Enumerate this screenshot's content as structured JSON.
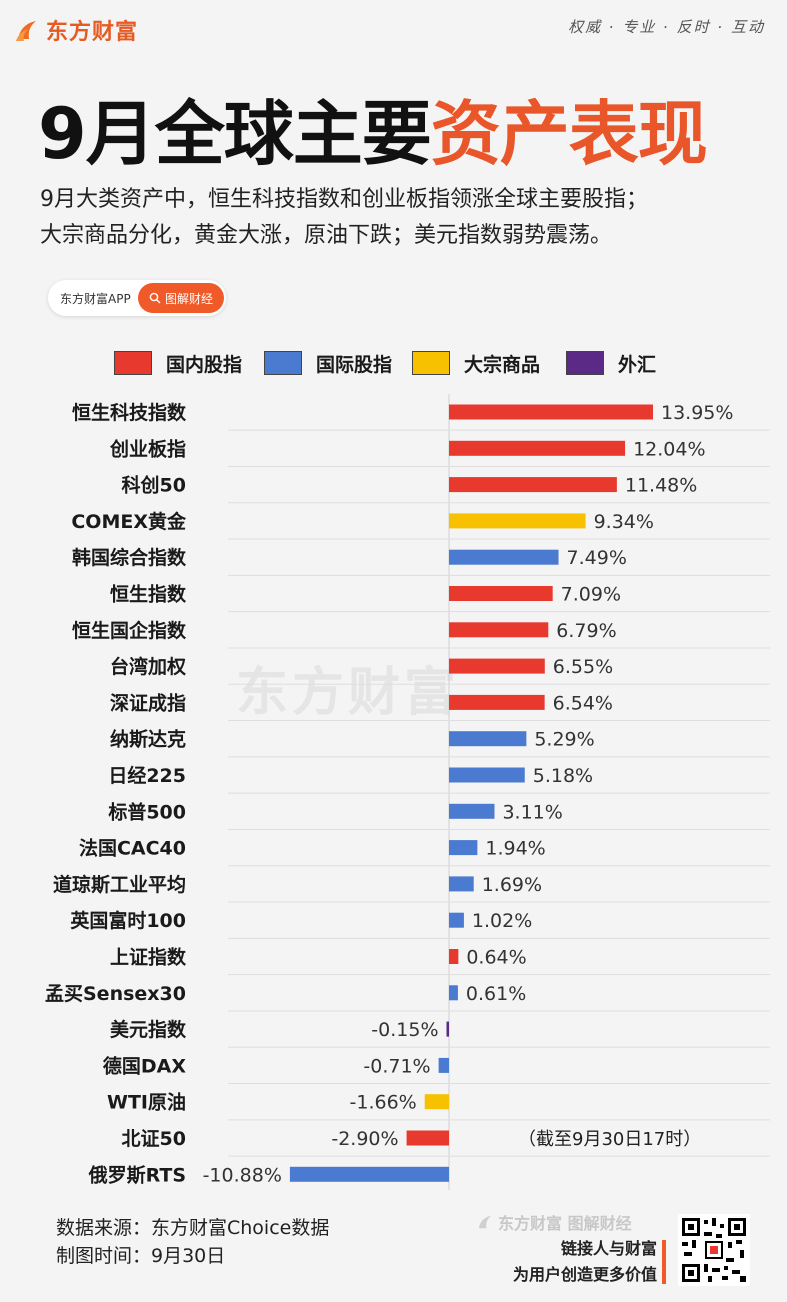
{
  "header": {
    "logo_text": "东方财富",
    "slogan": "权威 · 专业 · 反时 · 互动"
  },
  "title": {
    "black": "9月全球主要",
    "orange": "资产表现"
  },
  "intro": {
    "line1": "9月大类资产中，恒生科技指数和创业板指领涨全球主要股指；",
    "line2": "大宗商品分化，黄金大涨，原油下跌；美元指数弱势震荡。"
  },
  "search": {
    "app": "东方财富APP",
    "button": "图解财经"
  },
  "legend": [
    {
      "label": "国内股指",
      "color": "#e8392f"
    },
    {
      "label": "国际股指",
      "color": "#4a7bd0"
    },
    {
      "label": "大宗商品",
      "color": "#f7c100"
    },
    {
      "label": "外汇",
      "color": "#5b2a86"
    }
  ],
  "watermark": "东方财富",
  "chart_data": {
    "type": "bar",
    "orientation": "horizontal",
    "categories": [
      "恒生科技指数",
      "创业板指",
      "科创50",
      "COMEX黄金",
      "韩国综合指数",
      "恒生指数",
      "恒生国企指数",
      "台湾加权",
      "深证成指",
      "纳斯达克",
      "日经225",
      "标普500",
      "法国CAC40",
      "道琼斯工业平均",
      "英国富时100",
      "上证指数",
      "孟买Sensex30",
      "美元指数",
      "德国DAX",
      "WTI原油",
      "北证50",
      "俄罗斯RTS"
    ],
    "values": [
      13.95,
      12.04,
      11.48,
      9.34,
      7.49,
      7.09,
      6.79,
      6.55,
      6.54,
      5.29,
      5.18,
      3.11,
      1.94,
      1.69,
      1.02,
      0.64,
      0.61,
      -0.15,
      -0.71,
      -1.66,
      -2.9,
      -10.88
    ],
    "labels": [
      "13.95%",
      "12.04%",
      "11.48%",
      "9.34%",
      "7.49%",
      "7.09%",
      "6.79%",
      "6.55%",
      "6.54%",
      "5.29%",
      "5.18%",
      "3.11%",
      "1.94%",
      "1.69%",
      "1.02%",
      "0.64%",
      "0.61%",
      "-0.15%",
      "-0.71%",
      "-1.66%",
      "-2.90%",
      "-10.88%"
    ],
    "groups": [
      "国内股指",
      "国内股指",
      "国内股指",
      "大宗商品",
      "国际股指",
      "国内股指",
      "国内股指",
      "国内股指",
      "国内股指",
      "国际股指",
      "国际股指",
      "国际股指",
      "国际股指",
      "国际股指",
      "国际股指",
      "国内股指",
      "国际股指",
      "外汇",
      "国际股指",
      "大宗商品",
      "国内股指",
      "国际股指"
    ],
    "note": "（截至9月30日17时）"
  },
  "footer": {
    "source": "数据来源：东方财富Choice数据",
    "date": "制图时间：9月30日",
    "brand": "东方财富 图解财经",
    "tag1": "链接人与财富",
    "tag2": "为用户创造更多价值"
  }
}
